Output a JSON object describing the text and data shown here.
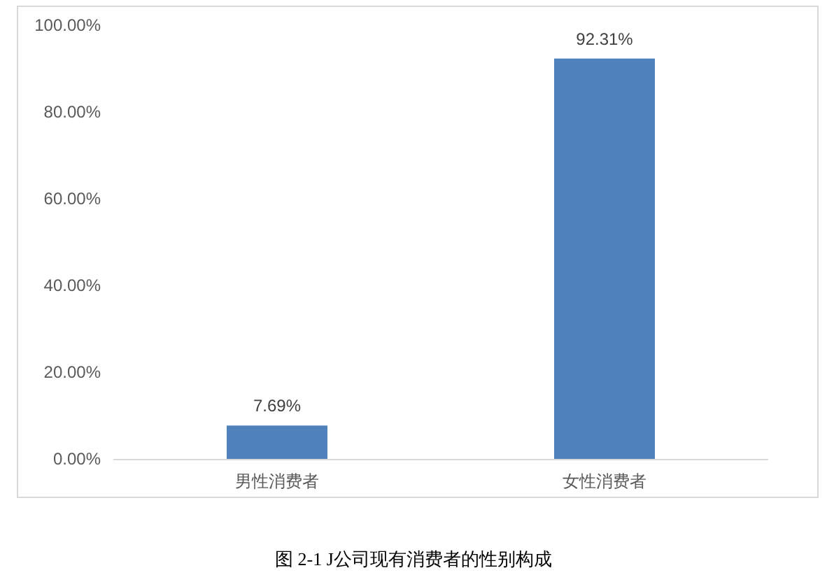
{
  "chart_data": {
    "type": "bar",
    "categories": [
      "男性消费者",
      "女性消费者"
    ],
    "values": [
      7.69,
      92.31
    ],
    "value_labels": [
      "7.69%",
      "92.31%"
    ],
    "color": "#4f81bd",
    "ylim": [
      0,
      100
    ],
    "yticks": [
      {
        "value": 0,
        "label": "0.00%"
      },
      {
        "value": 20,
        "label": "20.00%"
      },
      {
        "value": 40,
        "label": "40.00%"
      },
      {
        "value": 60,
        "label": "60.00%"
      },
      {
        "value": 80,
        "label": "80.00%"
      },
      {
        "value": 100,
        "label": "100.00%"
      }
    ],
    "annotations": [
      "图 2-1  J公司现有消费者的性别构成"
    ]
  }
}
